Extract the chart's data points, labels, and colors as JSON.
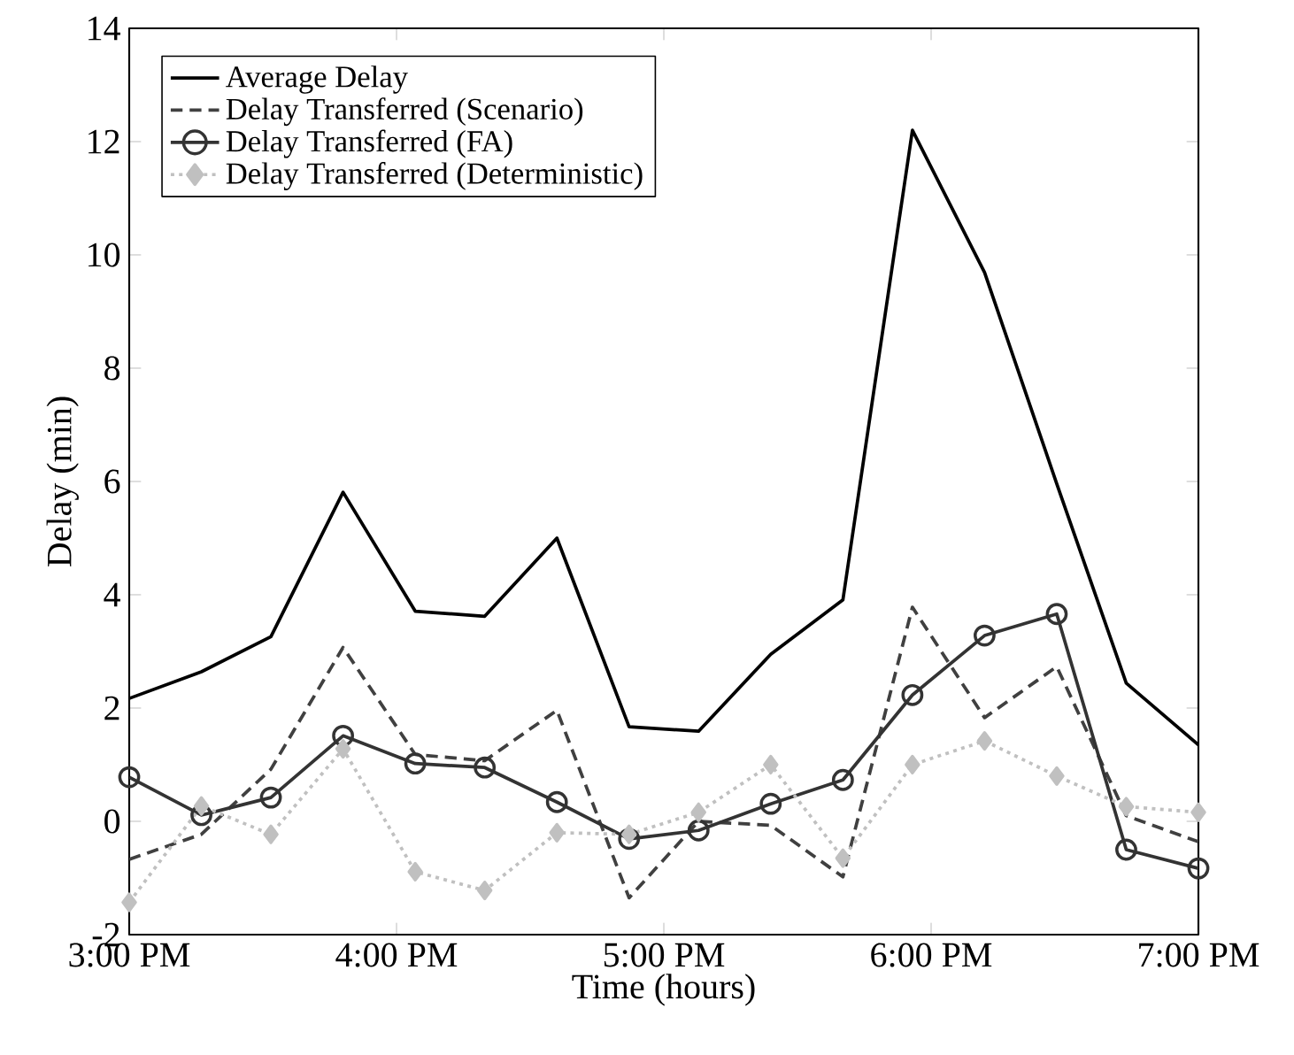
{
  "chart_data": {
    "type": "line",
    "xlabel": "Time (hours)",
    "ylabel": "Delay (min)",
    "x": [
      15,
      15.27,
      15.53,
      15.8,
      16.07,
      16.33,
      16.6,
      16.87,
      17.13,
      17.4,
      17.67,
      17.93,
      18.2,
      18.47,
      18.73,
      19
    ],
    "xlim": [
      15,
      19
    ],
    "xticks": [
      {
        "value": 15,
        "label": "3:00 PM"
      },
      {
        "value": 16,
        "label": "4:00 PM"
      },
      {
        "value": 17,
        "label": "5:00 PM"
      },
      {
        "value": 18,
        "label": "6:00 PM"
      },
      {
        "value": 19,
        "label": "7:00 PM"
      }
    ],
    "ylim": [
      -2,
      14
    ],
    "yticks": [
      -2,
      0,
      2,
      4,
      6,
      8,
      10,
      12,
      14
    ],
    "grid": false,
    "legend": "top left",
    "series": [
      {
        "name": "Average Delay",
        "color": "#000000",
        "line_style": "solid",
        "marker": "none",
        "values": [
          2.17,
          2.64,
          3.26,
          5.81,
          3.71,
          3.62,
          5.0,
          1.67,
          1.59,
          2.95,
          3.91,
          12.2,
          9.69,
          5.96,
          2.44,
          1.35
        ]
      },
      {
        "name": "Delay Transferred (Scenario)",
        "color": "#404040",
        "line_style": "dashed",
        "marker": "none",
        "values": [
          -0.67,
          -0.23,
          0.92,
          3.07,
          1.18,
          1.07,
          1.96,
          -1.35,
          0.0,
          -0.07,
          -0.98,
          3.78,
          1.83,
          2.73,
          0.1,
          -0.36
        ]
      },
      {
        "name": "Delay Transferred (FA)",
        "color": "#333333",
        "line_style": "solid",
        "marker": "circle",
        "values": [
          0.78,
          0.11,
          0.42,
          1.51,
          1.02,
          0.95,
          0.34,
          -0.31,
          -0.16,
          0.31,
          0.73,
          2.23,
          3.28,
          3.66,
          -0.5,
          -0.83
        ]
      },
      {
        "name": "Delay Transferred (Deterministic)",
        "color": "#c0c0c0",
        "line_style": "dotted",
        "marker": "diamond",
        "values": [
          -1.43,
          0.27,
          -0.23,
          1.28,
          -0.89,
          -1.22,
          -0.2,
          -0.23,
          0.16,
          1.0,
          -0.65,
          1.0,
          1.42,
          0.8,
          0.26,
          0.16
        ]
      }
    ]
  }
}
